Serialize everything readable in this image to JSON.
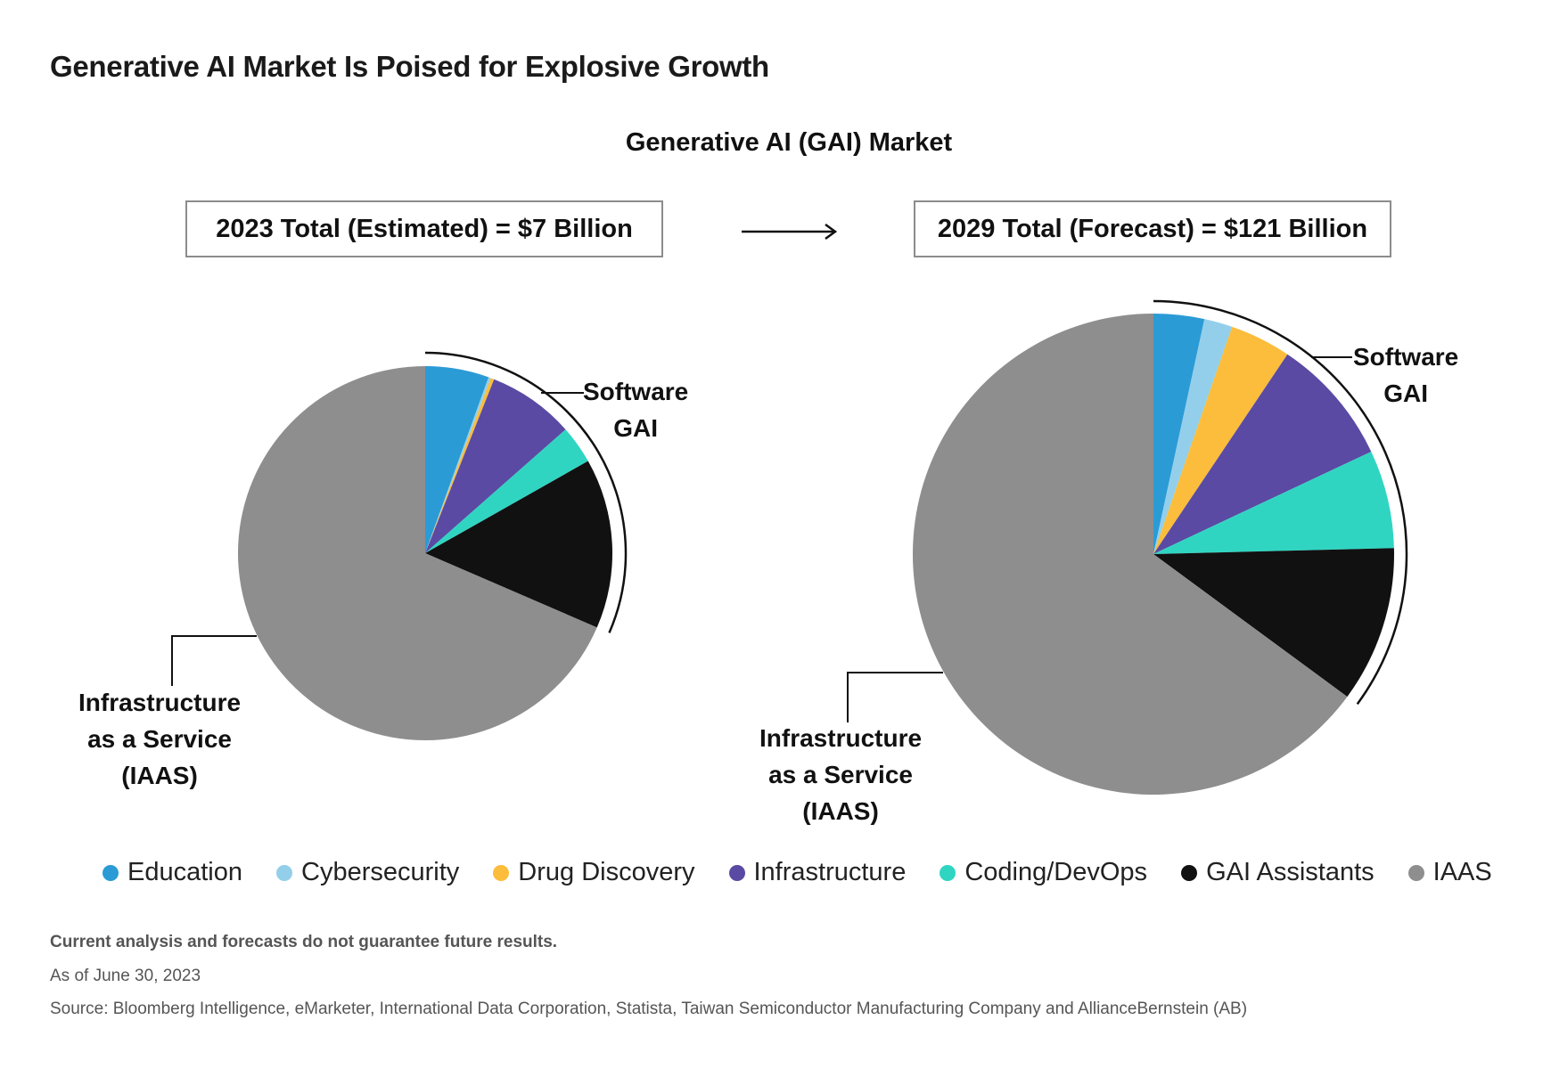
{
  "main_title": "Generative AI Market Is Poised for Explosive Growth",
  "sub_title": "Generative AI (GAI) Market",
  "box_2023": "2023 Total (Estimated) = $7 Billion",
  "box_2029": "2029 Total (Forecast) = $121 Billion",
  "callouts": {
    "software_line1": "Software",
    "software_line2": "GAI",
    "iaas_line1": "Infrastructure",
    "iaas_line2": "as a Service",
    "iaas_line3": "(IAAS)"
  },
  "legend": [
    {
      "label": "Education",
      "color": "#2b9bd6"
    },
    {
      "label": "Cybersecurity",
      "color": "#93cfea"
    },
    {
      "label": "Drug Discovery",
      "color": "#fbbd3b"
    },
    {
      "label": "Infrastructure",
      "color": "#5a4aa3"
    },
    {
      "label": "Coding/DevOps",
      "color": "#30d5c2"
    },
    {
      "label": "GAI Assistants",
      "color": "#111111"
    },
    {
      "label": "IAAS",
      "color": "#8e8e8e"
    }
  ],
  "footer": {
    "disclaimer": "Current analysis and forecasts do not guarantee future results.",
    "date": "As of June 30, 2023",
    "source": "Source: Bloomberg Intelligence, eMarketer, International Data Corporation, Statista, Taiwan Semiconductor Manufacturing Company and AllianceBernstein (AB)"
  },
  "chart_data": [
    {
      "type": "pie",
      "title": "2023 Total (Estimated) = $7 Billion",
      "total_billion": 7,
      "categories": [
        "Education",
        "Cybersecurity",
        "Drug Discovery",
        "Infrastructure",
        "Coding/DevOps",
        "GAI Assistants",
        "IAAS"
      ],
      "values": [
        5.5,
        0.2,
        0.3,
        7.5,
        3.3,
        14.7,
        68.5
      ],
      "unit": "percent share (estimated)"
    },
    {
      "type": "pie",
      "title": "2029 Total (Forecast) = $121 Billion",
      "total_billion": 121,
      "categories": [
        "Education",
        "Cybersecurity",
        "Drug Discovery",
        "Infrastructure",
        "Coding/DevOps",
        "GAI Assistants",
        "IAAS"
      ],
      "values": [
        3.4,
        1.9,
        4.1,
        8.6,
        6.6,
        10.5,
        64.9
      ],
      "unit": "percent share (estimated)"
    }
  ]
}
